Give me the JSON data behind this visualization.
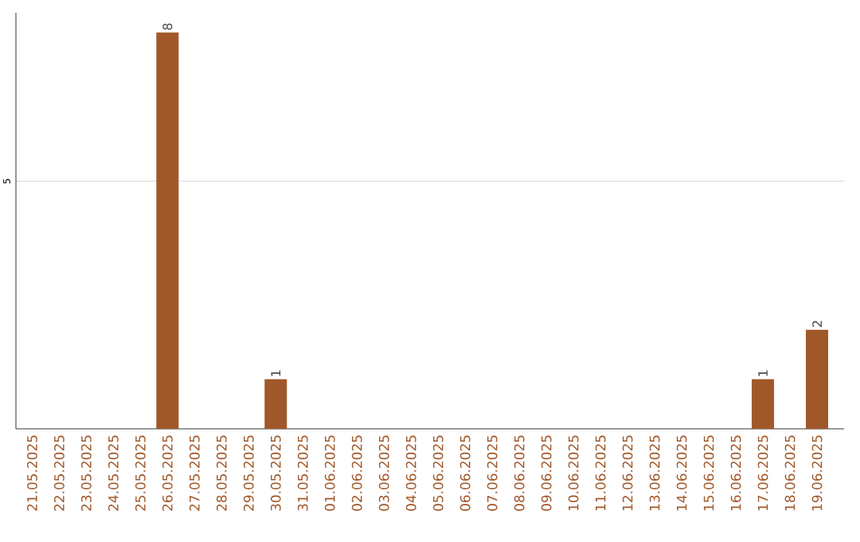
{
  "chart_data": {
    "type": "bar",
    "categories": [
      "21.05.2025",
      "22.05.2025",
      "23.05.2025",
      "24.05.2025",
      "25.05.2025",
      "26.05.2025",
      "27.05.2025",
      "28.05.2025",
      "29.05.2025",
      "30.05.2025",
      "31.05.2025",
      "01.06.2025",
      "02.06.2025",
      "03.06.2025",
      "04.06.2025",
      "05.06.2025",
      "06.06.2025",
      "07.06.2025",
      "08.06.2025",
      "09.06.2025",
      "10.06.2025",
      "11.06.2025",
      "12.06.2025",
      "13.06.2025",
      "14.06.2025",
      "15.06.2025",
      "16.06.2025",
      "17.06.2025",
      "18.06.2025",
      "19.06.2025"
    ],
    "values": [
      0,
      0,
      0,
      0,
      0,
      8,
      0,
      0,
      0,
      1,
      0,
      0,
      0,
      0,
      0,
      0,
      0,
      0,
      0,
      0,
      0,
      0,
      0,
      0,
      0,
      0,
      0,
      1,
      0,
      2
    ],
    "value_labels": [
      null,
      null,
      null,
      null,
      null,
      "8",
      null,
      null,
      null,
      "1",
      null,
      null,
      null,
      null,
      null,
      null,
      null,
      null,
      null,
      null,
      null,
      null,
      null,
      null,
      null,
      null,
      null,
      "1",
      null,
      "2"
    ],
    "color": "#a0582a",
    "ylim": [
      0,
      8.4
    ],
    "yticks": [
      5
    ],
    "grid": "y"
  }
}
